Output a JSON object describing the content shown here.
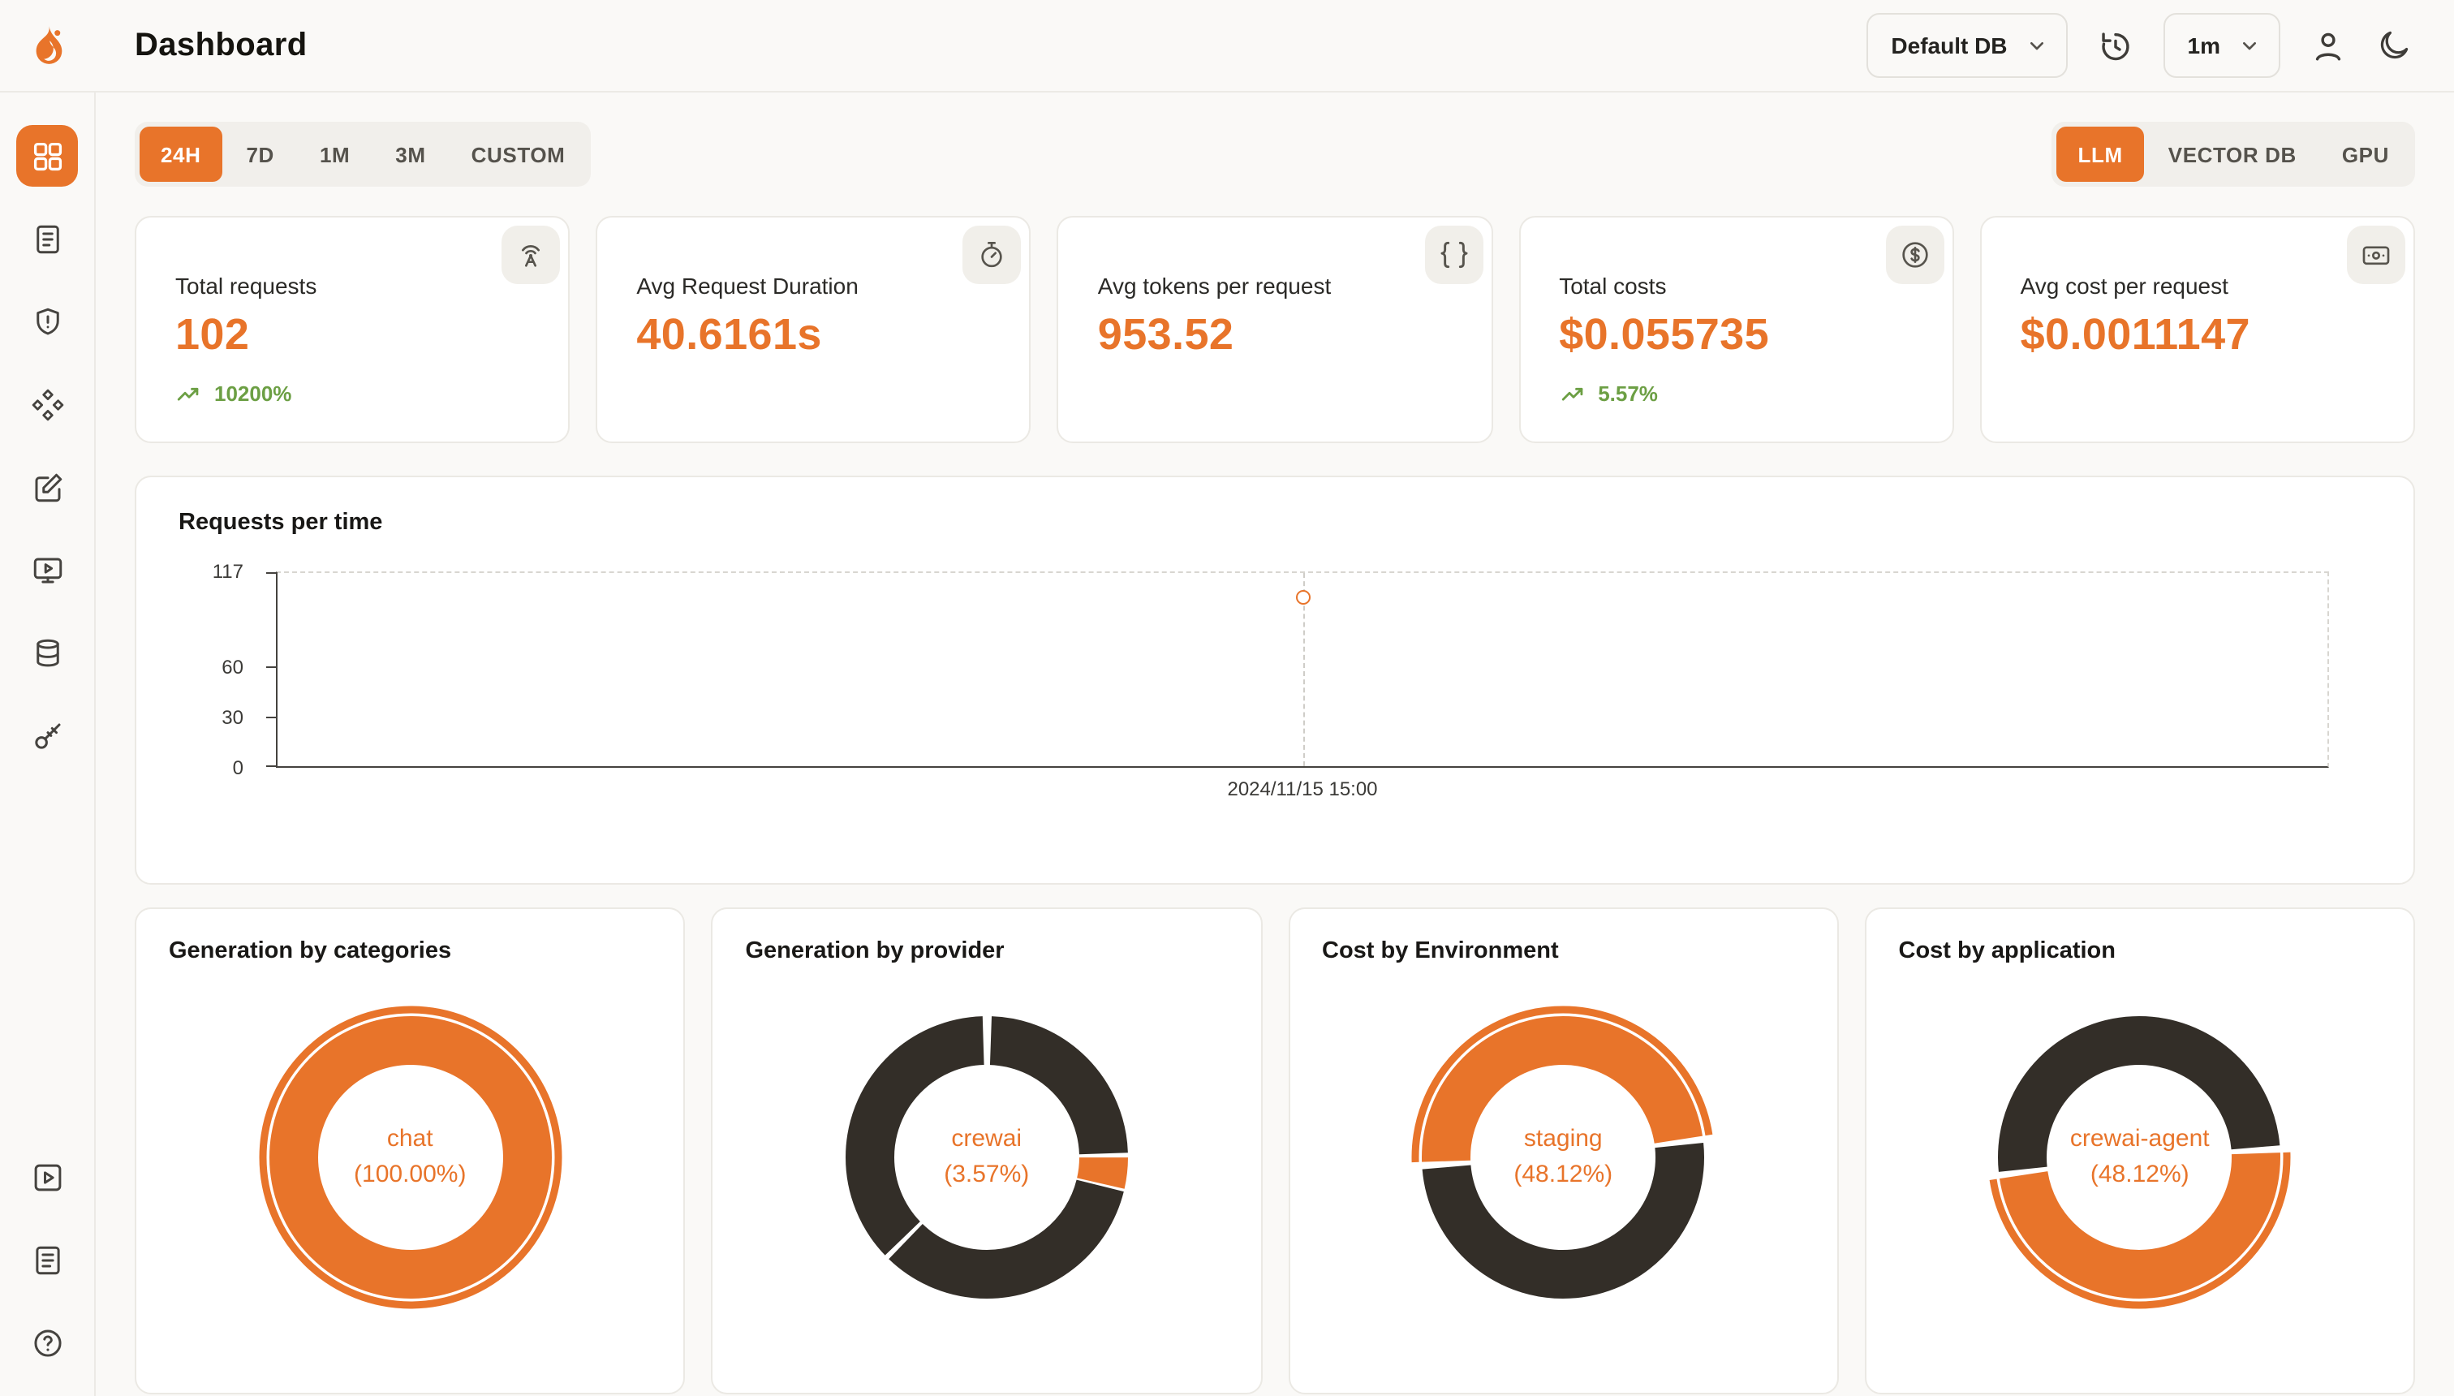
{
  "page": {
    "title": "Dashboard"
  },
  "header": {
    "database_select": {
      "value": "Default DB"
    },
    "refresh_interval_select": {
      "value": "1m"
    },
    "icons": [
      "history-icon",
      "user-icon",
      "moon-icon"
    ]
  },
  "sidebar": {
    "top_icons": [
      "dashboard-grid",
      "document",
      "shield",
      "diamonds",
      "edit-square",
      "monitor-play",
      "database",
      "key"
    ],
    "active_icon": "dashboard-grid",
    "bottom_icons": [
      "play-square",
      "document-lines",
      "help-circle"
    ]
  },
  "filters": {
    "time_ranges": [
      "24H",
      "7D",
      "1M",
      "3M",
      "CUSTOM"
    ],
    "active_time_range": "24H",
    "categories": [
      "LLM",
      "VECTOR DB",
      "GPU"
    ],
    "active_category": "LLM"
  },
  "stat_cards": [
    {
      "label": "Total requests",
      "value": "102",
      "delta": "10200%",
      "icon": "broadcast-icon"
    },
    {
      "label": "Avg Request Duration",
      "value": "40.6161s",
      "icon": "stopwatch-icon"
    },
    {
      "label": "Avg tokens per request",
      "value": "953.52",
      "icon": "braces-icon"
    },
    {
      "label": "Total costs",
      "value": "$0.055735",
      "delta": "5.57%",
      "icon": "dollar-icon"
    },
    {
      "label": "Avg cost per request",
      "value": "$0.0011147",
      "icon": "banknote-icon"
    }
  ],
  "colors": {
    "accent": "#E8742A",
    "dark_slice": "#332E28",
    "green": "#6C9F44"
  },
  "chart_data": [
    {
      "type": "line",
      "title": "Requests per time",
      "x": [
        "2024/11/15 15:00"
      ],
      "values": [
        102
      ],
      "ylim": [
        0,
        117
      ],
      "yticks": [
        0,
        30,
        60,
        117
      ],
      "grid": "dashed-frame",
      "point_style": "hollow-orange-circle"
    },
    {
      "type": "pie",
      "title": "Generation by categories",
      "center_label": {
        "line1": "chat",
        "line2": "(100.00%)"
      },
      "slices": [
        {
          "label": "chat",
          "pct": 100,
          "start_deg": 0,
          "color": "#E8742A",
          "emphasis": true
        }
      ]
    },
    {
      "type": "pie",
      "title": "Generation by provider",
      "center_label": {
        "line1": "crewai",
        "line2": "(3.57%)"
      },
      "slices": [
        {
          "label": "",
          "pct": 23.9,
          "start_deg": 2,
          "color": "#332E28"
        },
        {
          "label": "crewai",
          "pct": 3.57,
          "start_deg": 90,
          "color": "#E8742A"
        },
        {
          "label": "",
          "pct": 33.3,
          "start_deg": 104,
          "color": "#332E28"
        },
        {
          "label": "",
          "pct": 36.7,
          "start_deg": 226,
          "color": "#332E28"
        }
      ]
    },
    {
      "type": "pie",
      "title": "Cost by Environment",
      "center_label": {
        "line1": "staging",
        "line2": "(48.12%)"
      },
      "slices": [
        {
          "label": "staging",
          "pct": 48.12,
          "start_deg": 268,
          "color": "#E8742A",
          "emphasis": true
        },
        {
          "label": "",
          "pct": 50.3,
          "start_deg": 84,
          "color": "#332E28"
        }
      ]
    },
    {
      "type": "pie",
      "title": "Cost by application",
      "center_label": {
        "line1": "crewai-agent",
        "line2": "(48.12%)"
      },
      "slices": [
        {
          "label": "crewai-agent",
          "pct": 48.12,
          "start_deg": 88,
          "color": "#E8742A",
          "emphasis": true
        },
        {
          "label": "",
          "pct": 50.3,
          "start_deg": 264,
          "color": "#332E28"
        }
      ]
    }
  ]
}
